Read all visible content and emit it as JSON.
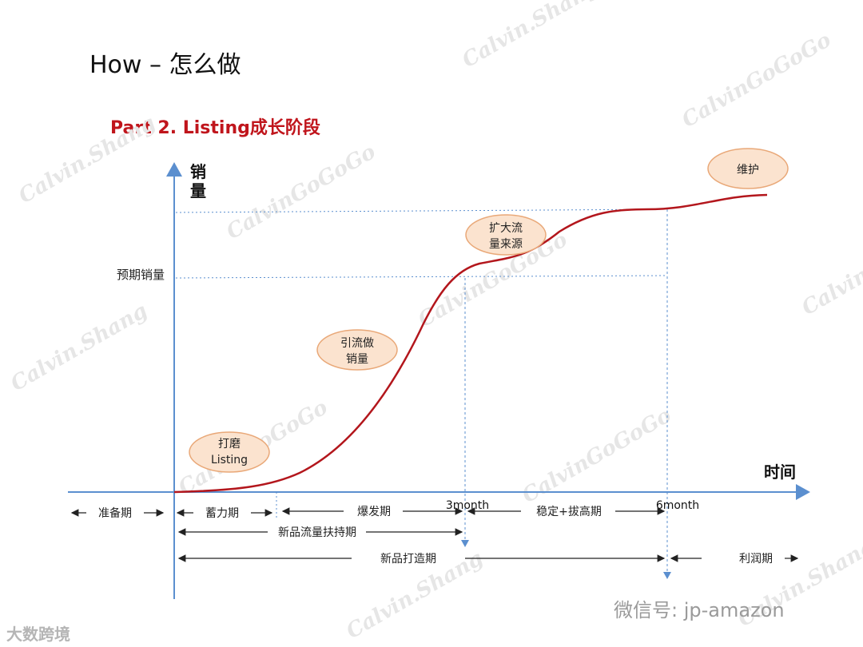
{
  "title": "How – 怎么做",
  "subtitle": "Part 2. Listing成长阶段",
  "axes": {
    "y_label": [
      "销",
      "量"
    ],
    "x_label": "时间",
    "y_tick": "预期销量"
  },
  "bubbles": [
    {
      "lines": [
        "打磨",
        "Listing"
      ]
    },
    {
      "lines": [
        "引流做",
        "销量"
      ]
    },
    {
      "lines": [
        "扩大流",
        "量来源"
      ]
    },
    {
      "lines": [
        "维护"
      ]
    }
  ],
  "markers": {
    "m3": "3month",
    "m6": "6month"
  },
  "phases": {
    "prep": "准备期",
    "accumulate": "蓄力期",
    "burst": "爆发期",
    "stable": "稳定+拔高期",
    "support": "新品流量扶持期",
    "build": "新品打造期",
    "profit": "利润期"
  },
  "watermark": "CalvinGoGoGo",
  "watermark2": "Calvin.Shang",
  "footer": {
    "wechat": "微信号: jp-amazon",
    "logo": "大数跨境"
  },
  "colors": {
    "curve": "#b3161c",
    "axis": "#5b8fcf",
    "bubble_fill": "#fbe3cf",
    "bubble_stroke": "#e9a878"
  }
}
